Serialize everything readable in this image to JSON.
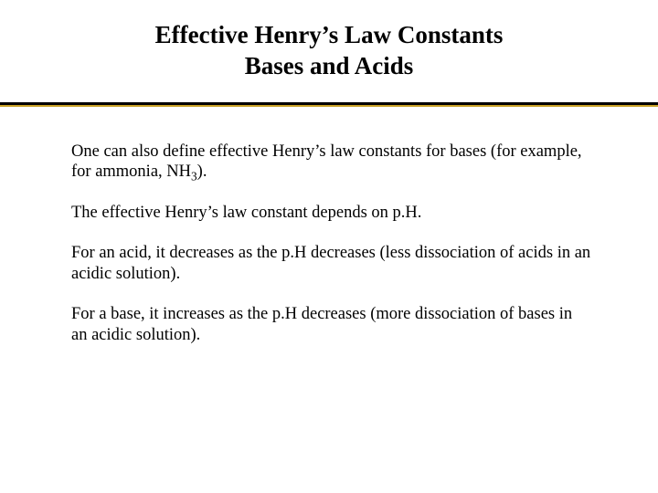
{
  "title": {
    "line1": "Effective Henry’s Law Constants",
    "line2": "Bases and Acids"
  },
  "paragraphs": {
    "p1_pre": "One can also define effective Henry’s law constants for bases (for example, for ammonia, NH",
    "p1_sub": "3",
    "p1_post": ").",
    "p2": "The effective Henry’s law constant depends on p.H.",
    "p3": "For an acid, it decreases as the p.H decreases (less dissociation of acids in an acidic solution).",
    "p4": "For a base, it increases as the p.H decreases (more dissociation of bases in an acidic solution)."
  },
  "colors": {
    "background": "#ffffff",
    "text": "#000000",
    "divider_dark": "#000000",
    "divider_gold": "#c9a227"
  }
}
